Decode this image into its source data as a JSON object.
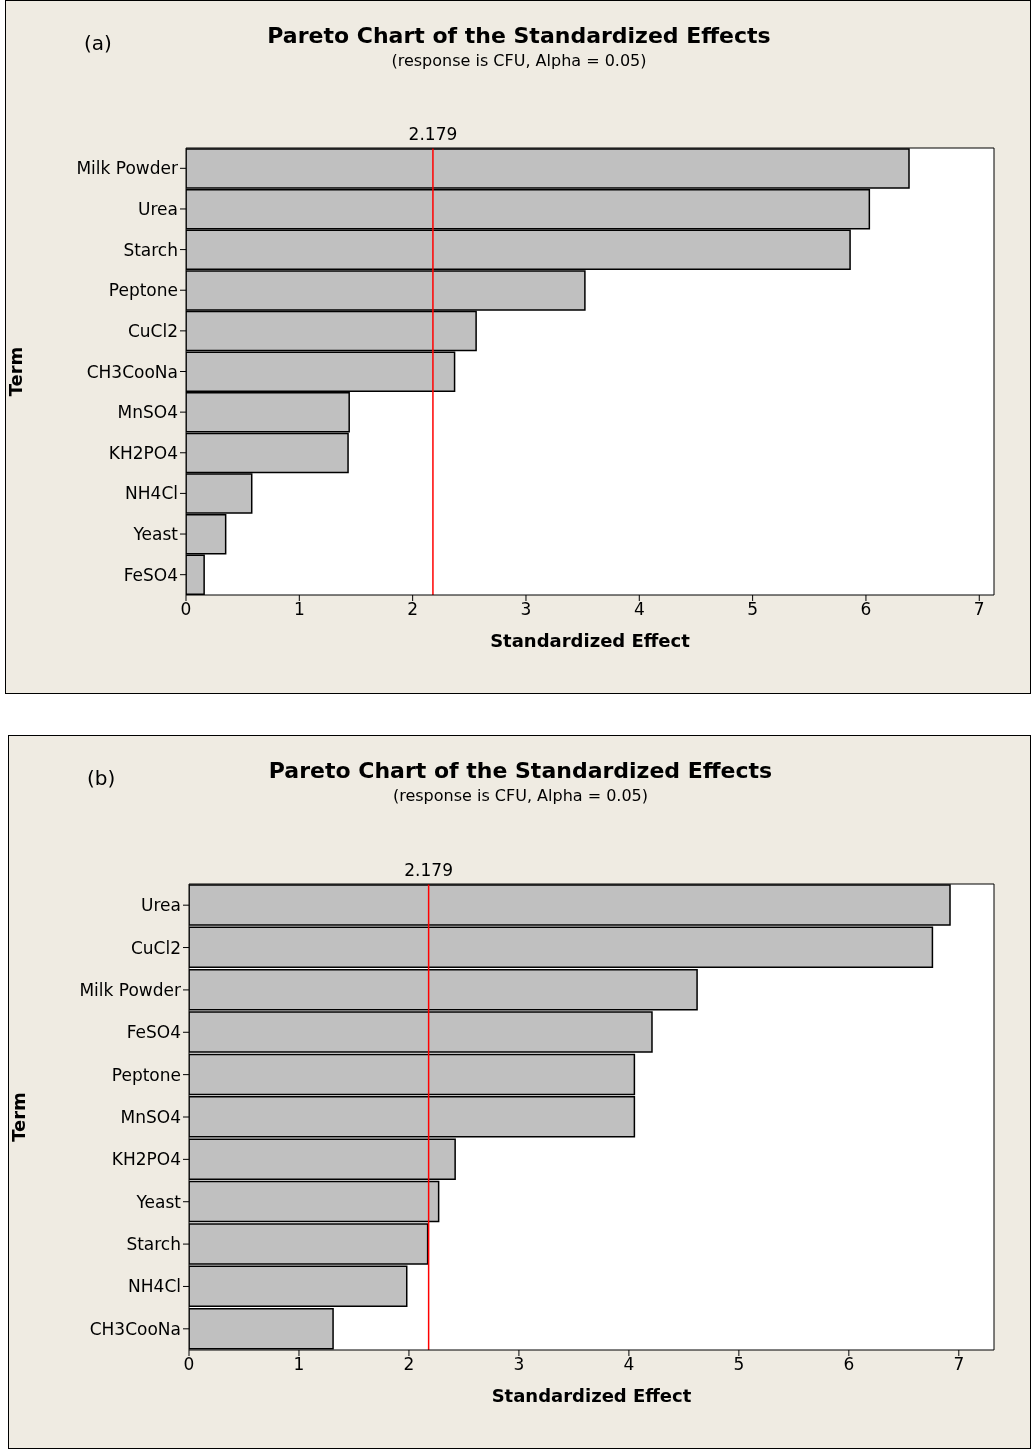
{
  "chart_data": [
    {
      "type": "bar",
      "orientation": "horizontal",
      "title": "Pareto Chart of the Standardized Effects",
      "subtitle": "(response is CFU, Alpha = 0.05)",
      "annotations": [
        "(a)"
      ],
      "xlabel": "Standardized Effect",
      "ylabel": "Term",
      "categories": [
        "Milk Powder",
        "Urea",
        "Starch",
        "Peptone",
        "CuCl2",
        "CH3CooNa",
        "MnSO4",
        "KH2PO4",
        "NH4Cl",
        "Yeast",
        "FeSO4"
      ],
      "values": [
        6.38,
        6.03,
        5.86,
        3.52,
        2.56,
        2.37,
        1.44,
        1.43,
        0.58,
        0.35,
        0.16
      ],
      "color": "#c0c0c0",
      "xlim": [
        0,
        7.13
      ],
      "xticks": [
        0,
        1,
        2,
        3,
        4,
        5,
        6,
        7
      ],
      "ref_lines": [
        {
          "axis": "x",
          "value": 2.179,
          "label": "2.179",
          "color": "#ff0000"
        }
      ],
      "grid": false,
      "legend": false
    },
    {
      "type": "bar",
      "orientation": "horizontal",
      "title": "Pareto Chart of the Standardized Effects",
      "subtitle": "(response is CFU, Alpha = 0.05)",
      "annotations": [
        "(b)"
      ],
      "xlabel": "Standardized Effect",
      "ylabel": "Term",
      "categories": [
        "Urea",
        "CuCl2",
        "Milk Powder",
        "FeSO4",
        "Peptone",
        "MnSO4",
        "KH2PO4",
        "Yeast",
        "Starch",
        "NH4Cl",
        "CH3CooNa"
      ],
      "values": [
        6.92,
        6.76,
        4.62,
        4.21,
        4.05,
        4.05,
        2.42,
        2.27,
        2.17,
        1.98,
        1.31
      ],
      "color": "#c0c0c0",
      "xlim": [
        0,
        7.32
      ],
      "xticks": [
        0,
        1,
        2,
        3,
        4,
        5,
        6,
        7
      ],
      "ref_lines": [
        {
          "axis": "x",
          "value": 2.179,
          "label": "2.179",
          "color": "#ff0000"
        }
      ],
      "grid": false,
      "legend": false
    }
  ]
}
